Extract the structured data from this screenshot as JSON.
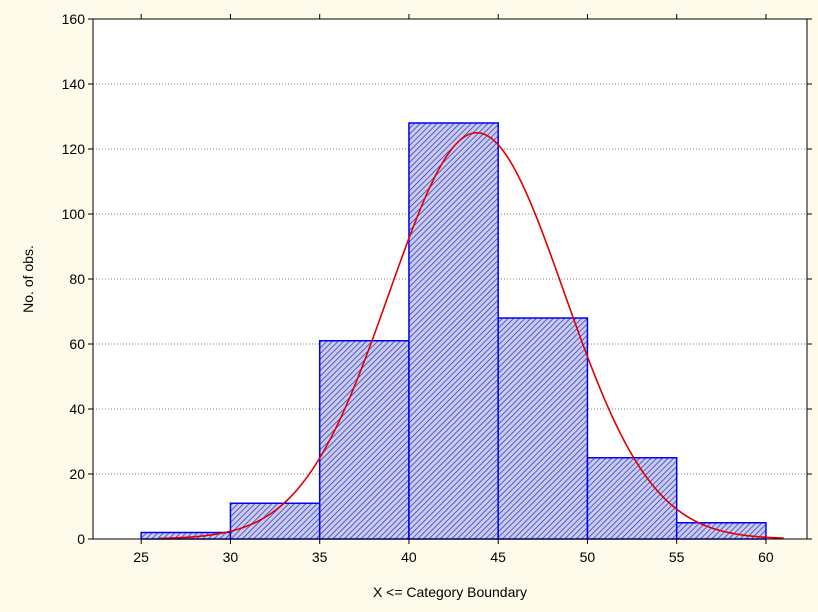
{
  "chart_data": {
    "type": "bar",
    "variant": "histogram",
    "xlabel": "X <= Category Boundary",
    "ylabel": "No. of obs.",
    "xlim": [
      22.3,
      62.3
    ],
    "ylim": [
      0,
      160
    ],
    "x_ticks": [
      25,
      30,
      35,
      40,
      45,
      50,
      55,
      60
    ],
    "y_ticks": [
      0,
      20,
      40,
      60,
      80,
      100,
      120,
      140,
      160
    ],
    "bins": [
      {
        "from": 25,
        "to": 30,
        "value": 2
      },
      {
        "from": 30,
        "to": 35,
        "value": 11
      },
      {
        "from": 35,
        "to": 40,
        "value": 61
      },
      {
        "from": 40,
        "to": 45,
        "value": 128
      },
      {
        "from": 45,
        "to": 50,
        "value": 68
      },
      {
        "from": 50,
        "to": 55,
        "value": 25
      },
      {
        "from": 55,
        "to": 60,
        "value": 5
      }
    ],
    "curve": {
      "type": "normal-fit",
      "mean": 43.8,
      "peak": 125,
      "sd": 4.9,
      "x_range": [
        26,
        61
      ]
    },
    "grid": true,
    "colors": {
      "bar_fill": "#c8ccf0",
      "bar_hatch": "#2b2bb0",
      "bar_edge": "#0000ff",
      "curve": "#e00000",
      "plot_bg": "#ffffff",
      "page_bg": "#fffbea",
      "grid": "#808080"
    }
  }
}
